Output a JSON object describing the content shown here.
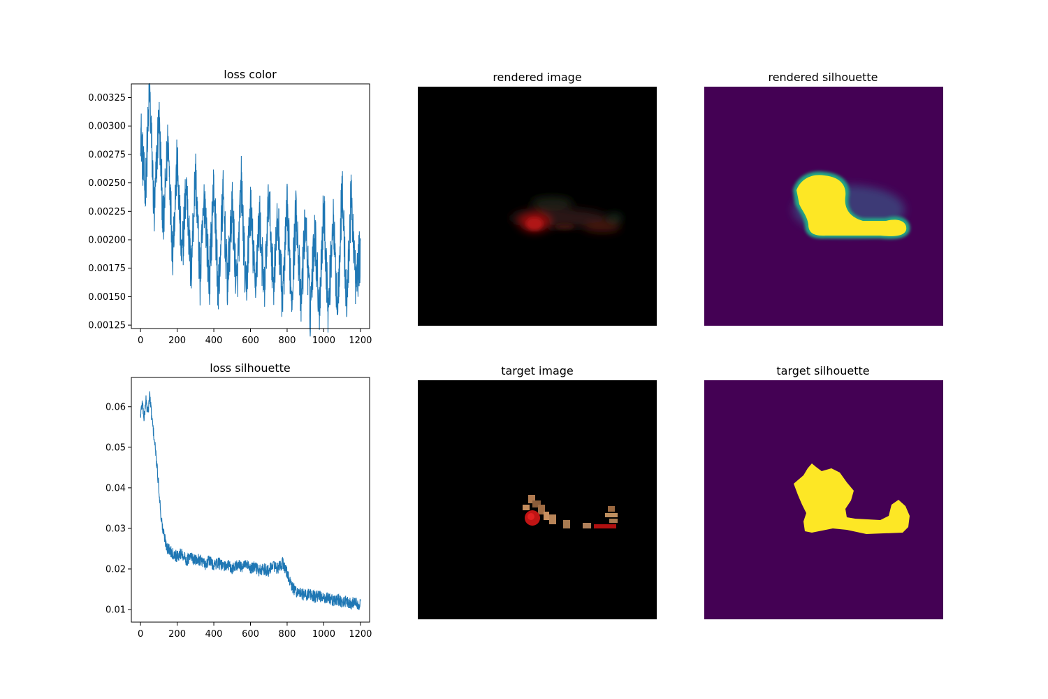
{
  "chart_data": [
    {
      "type": "line",
      "title": "loss color",
      "xlabel": "",
      "ylabel": "",
      "xlim": [
        -50,
        1250
      ],
      "ylim": [
        0.00122,
        0.00337
      ],
      "xticks": [
        0,
        200,
        400,
        600,
        800,
        1000,
        1200
      ],
      "yticks": [
        "0.00125",
        "0.00150",
        "0.00175",
        "0.00200",
        "0.00225",
        "0.00250",
        "0.00275",
        "0.00300",
        "0.00325"
      ],
      "grid": false,
      "color": "#1f77b4",
      "x": [
        0,
        25,
        50,
        75,
        100,
        125,
        150,
        175,
        200,
        225,
        250,
        275,
        300,
        325,
        350,
        375,
        400,
        425,
        450,
        475,
        500,
        525,
        550,
        575,
        600,
        625,
        650,
        675,
        700,
        725,
        750,
        775,
        800,
        825,
        850,
        875,
        900,
        925,
        950,
        975,
        1000,
        1025,
        1050,
        1075,
        1100,
        1125,
        1150,
        1175,
        1200
      ],
      "y": [
        0.003,
        0.0024,
        0.0033,
        0.0022,
        0.0031,
        0.0021,
        0.0029,
        0.0019,
        0.0027,
        0.0018,
        0.0025,
        0.0017,
        0.0026,
        0.00165,
        0.0024,
        0.0016,
        0.0025,
        0.0015,
        0.0024,
        0.0016,
        0.0023,
        0.00155,
        0.0025,
        0.0015,
        0.0023,
        0.0016,
        0.0022,
        0.0015,
        0.0024,
        0.0016,
        0.0022,
        0.00145,
        0.00225,
        0.0015,
        0.0023,
        0.0014,
        0.0022,
        0.00135,
        0.0021,
        0.0014,
        0.0023,
        0.00135,
        0.0022,
        0.0014,
        0.00245,
        0.0014,
        0.0024,
        0.0016,
        0.0019
      ]
    },
    {
      "type": "line",
      "title": "loss silhouette",
      "xlabel": "",
      "ylabel": "",
      "xlim": [
        -50,
        1250
      ],
      "ylim": [
        0.0069,
        0.0672
      ],
      "xticks": [
        0,
        200,
        400,
        600,
        800,
        1000,
        1200
      ],
      "yticks": [
        "0.01",
        "0.02",
        "0.03",
        "0.04",
        "0.05",
        "0.06"
      ],
      "grid": false,
      "color": "#1f77b4",
      "x": [
        0,
        10,
        20,
        30,
        40,
        50,
        60,
        70,
        80,
        90,
        100,
        110,
        120,
        130,
        140,
        150,
        175,
        200,
        225,
        250,
        275,
        300,
        325,
        350,
        375,
        400,
        425,
        450,
        475,
        500,
        525,
        550,
        575,
        600,
        625,
        650,
        675,
        700,
        725,
        750,
        775,
        800,
        825,
        850,
        875,
        900,
        925,
        950,
        975,
        1000,
        1025,
        1050,
        1075,
        1100,
        1125,
        1150,
        1175,
        1200
      ],
      "y": [
        0.058,
        0.061,
        0.057,
        0.062,
        0.058,
        0.063,
        0.058,
        0.054,
        0.05,
        0.045,
        0.04,
        0.034,
        0.03,
        0.028,
        0.026,
        0.025,
        0.024,
        0.023,
        0.024,
        0.022,
        0.023,
        0.022,
        0.0225,
        0.021,
        0.022,
        0.021,
        0.0215,
        0.0205,
        0.021,
        0.02,
        0.021,
        0.0205,
        0.021,
        0.02,
        0.0205,
        0.0195,
        0.02,
        0.0195,
        0.021,
        0.02,
        0.0215,
        0.019,
        0.0155,
        0.0145,
        0.014,
        0.0135,
        0.014,
        0.013,
        0.0135,
        0.0125,
        0.013,
        0.012,
        0.0125,
        0.0118,
        0.012,
        0.0115,
        0.0118,
        0.0112
      ]
    }
  ],
  "images": {
    "rendered_image": {
      "title": "rendered image",
      "background": "#000000"
    },
    "rendered_silhouette": {
      "title": "rendered silhouette",
      "background": "#440154",
      "foreground": "#fde725",
      "edge": "#21a685"
    },
    "target_image": {
      "title": "target image",
      "background": "#000000"
    },
    "target_silhouette": {
      "title": "target silhouette",
      "background": "#440154",
      "foreground": "#fde725"
    }
  }
}
